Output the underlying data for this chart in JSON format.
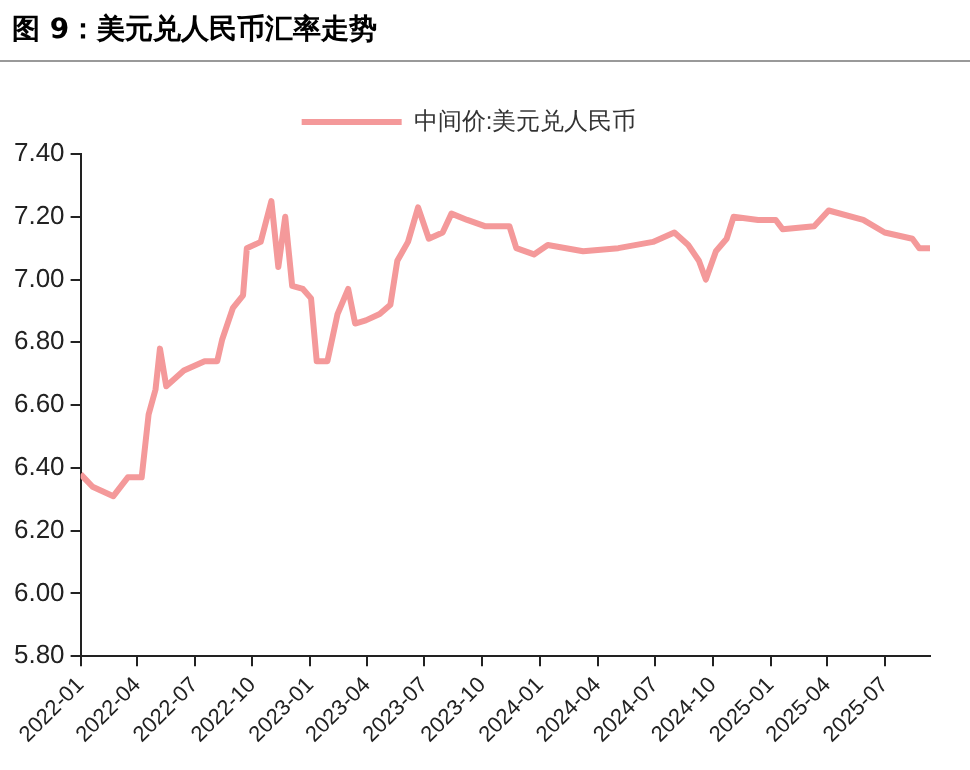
{
  "chart_data": {
    "type": "line",
    "title": "图 9：美元兑人民币汇率走势",
    "x": [
      "2022-01-01",
      "2022-01-20",
      "2022-02-22",
      "2022-03-17",
      "2022-04-08",
      "2022-04-19",
      "2022-04-30",
      "2022-05-07",
      "2022-05-17",
      "2022-06-14",
      "2022-07-17",
      "2022-08-06",
      "2022-08-14",
      "2022-08-31",
      "2022-09-16",
      "2022-09-22",
      "2022-10-14",
      "2022-10-31",
      "2022-11-11",
      "2022-11-22",
      "2022-12-03",
      "2022-12-20",
      "2023-01-02",
      "2023-01-11",
      "2023-01-28",
      "2023-02-13",
      "2023-03-02",
      "2023-03-13",
      "2023-03-30",
      "2023-04-21",
      "2023-05-08",
      "2023-05-19",
      "2023-06-05",
      "2023-06-21",
      "2023-07-08",
      "2023-07-30",
      "2023-08-13",
      "2023-09-07",
      "2023-10-05",
      "2023-11-13",
      "2023-11-24",
      "2023-12-22",
      "2024-01-13",
      "2024-03-09",
      "2024-05-04",
      "2024-06-28",
      "2024-08-01",
      "2024-08-23",
      "2024-09-09",
      "2024-09-20",
      "2024-10-06",
      "2024-10-23",
      "2024-11-03",
      "2024-12-12",
      "2025-01-09",
      "2025-01-20",
      "2025-03-11",
      "2025-04-03",
      "2025-05-28",
      "2025-07-01",
      "2025-08-14",
      "2025-08-25",
      "2025-09-11"
    ],
    "series": [
      {
        "name": "中间价:美元兑人民币",
        "color": "#f4999a",
        "values": [
          6.38,
          6.34,
          6.31,
          6.37,
          6.37,
          6.57,
          6.65,
          6.78,
          6.66,
          6.71,
          6.74,
          6.74,
          6.81,
          6.91,
          6.95,
          7.1,
          7.12,
          7.25,
          7.04,
          7.2,
          6.98,
          6.97,
          6.94,
          6.74,
          6.74,
          6.89,
          6.97,
          6.86,
          6.87,
          6.89,
          6.92,
          7.06,
          7.12,
          7.23,
          7.13,
          7.15,
          7.21,
          7.19,
          7.17,
          7.17,
          7.1,
          7.08,
          7.11,
          7.09,
          7.1,
          7.12,
          7.15,
          7.11,
          7.06,
          7.0,
          7.09,
          7.13,
          7.2,
          7.19,
          7.19,
          7.16,
          7.17,
          7.22,
          7.19,
          7.15,
          7.13,
          7.1,
          7.1
        ]
      }
    ],
    "xlim": [
      "2022-01-01",
      "2025-09-11"
    ],
    "xticks": [
      "2022-01",
      "2022-04",
      "2022-07",
      "2022-10",
      "2023-01",
      "2023-04",
      "2023-07",
      "2023-10",
      "2024-01",
      "2024-04",
      "2024-07",
      "2024-10",
      "2025-01",
      "2025-04",
      "2025-07"
    ],
    "ylim": [
      5.8,
      7.4
    ],
    "yticks": [
      {
        "value": 5.8,
        "label": "5.80"
      },
      {
        "value": 6.0,
        "label": "6.00"
      },
      {
        "value": 6.2,
        "label": "6.20"
      },
      {
        "value": 6.4,
        "label": "6.40"
      },
      {
        "value": 6.6,
        "label": "6.60"
      },
      {
        "value": 6.8,
        "label": "6.80"
      },
      {
        "value": 7.0,
        "label": "7.00"
      },
      {
        "value": 7.2,
        "label": "7.20"
      },
      {
        "value": 7.4,
        "label": "7.40"
      }
    ],
    "grid": false,
    "legend": "top",
    "marker": "none",
    "line_style": "solid"
  }
}
